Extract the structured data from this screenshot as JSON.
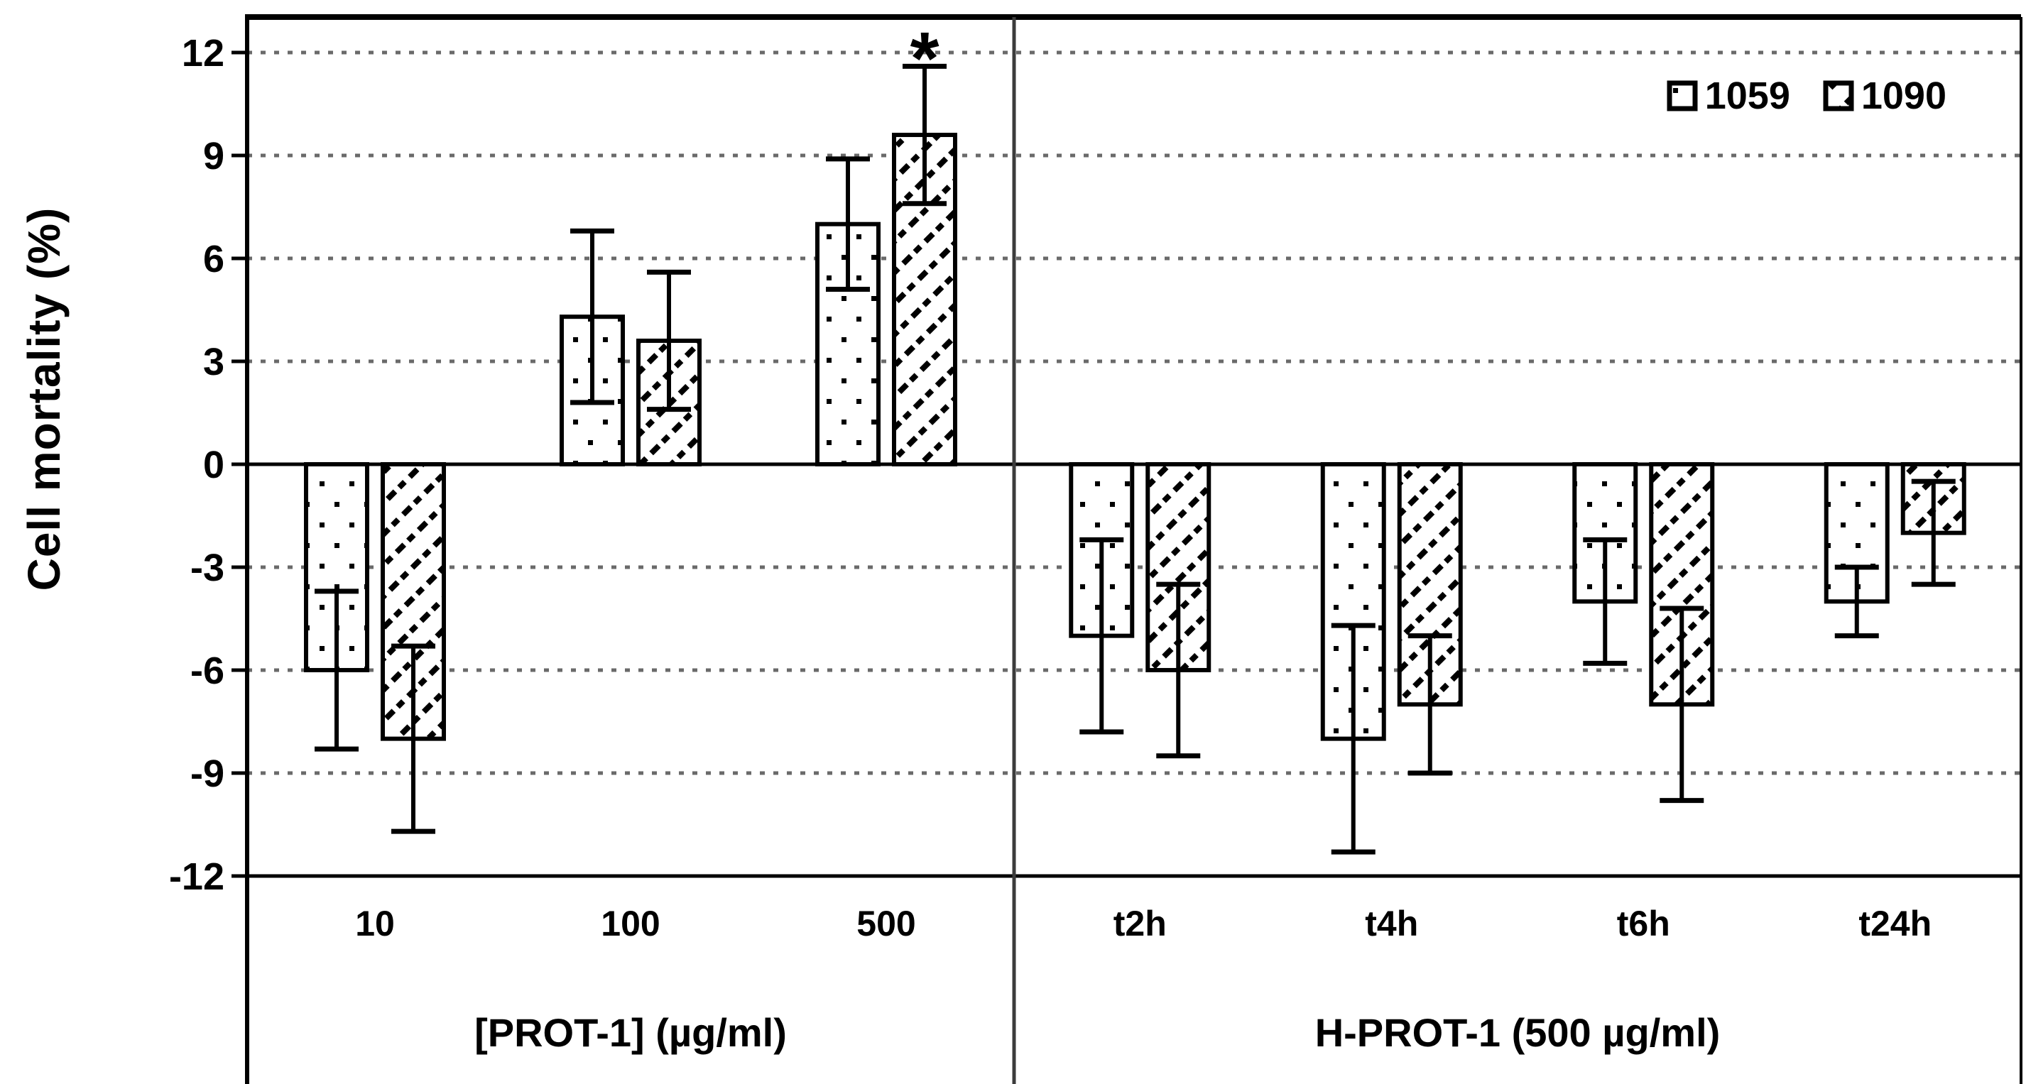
{
  "figure": {
    "background": "#ffffff",
    "y_axis_title": "Cell mortality (%)"
  },
  "chart_data": {
    "type": "bar",
    "title": "",
    "xlabel": "",
    "ylabel": "Cell mortality (%)",
    "ylim": [
      -12,
      12
    ],
    "yticks": [
      12,
      9,
      6,
      3,
      0,
      -3,
      -6,
      -9,
      -12
    ],
    "ytick_labels": [
      "12",
      "9",
      "6",
      "3",
      "0",
      "-3",
      "-6",
      "-9",
      "-12"
    ],
    "grid": "horizontal dotted, solid zero line",
    "legend_position": "top-right",
    "series_names": [
      "1059",
      "1090"
    ],
    "series_patterns": [
      "dotted-squares",
      "diagonal-hatch"
    ],
    "bar_fill": "#ffffff",
    "bar_edge": "#000000",
    "grid_color": "#6a6a6a",
    "divider_color": "#3c3c3c",
    "panels": [
      {
        "label": "[PROT-1] (µg/ml)",
        "categories": [
          "10",
          "100",
          "500"
        ],
        "series": [
          {
            "name": "1059",
            "values": [
              -6.0,
              4.3,
              7.0
            ],
            "errors": [
              2.3,
              2.5,
              1.9
            ]
          },
          {
            "name": "1090",
            "values": [
              -8.0,
              3.6,
              9.6
            ],
            "errors": [
              2.7,
              2.0,
              2.0
            ]
          }
        ]
      },
      {
        "label": "H-PROT-1 (500 µg/ml)",
        "categories": [
          "t2h",
          "t4h",
          "t6h",
          "t24h"
        ],
        "series": [
          {
            "name": "1059",
            "values": [
              -5.0,
              -8.0,
              -4.0,
              -4.0
            ],
            "errors": [
              2.8,
              3.3,
              1.8,
              1.0
            ]
          },
          {
            "name": "1090",
            "values": [
              -6.0,
              -7.0,
              -7.0,
              -2.0
            ],
            "errors": [
              2.5,
              2.0,
              2.8,
              1.5
            ]
          }
        ]
      }
    ],
    "annotations": [
      {
        "text": "*",
        "panel": 0,
        "category_index": 2,
        "series_index": 1,
        "meaning": "significance marker above 1090 bar at 500"
      }
    ]
  }
}
